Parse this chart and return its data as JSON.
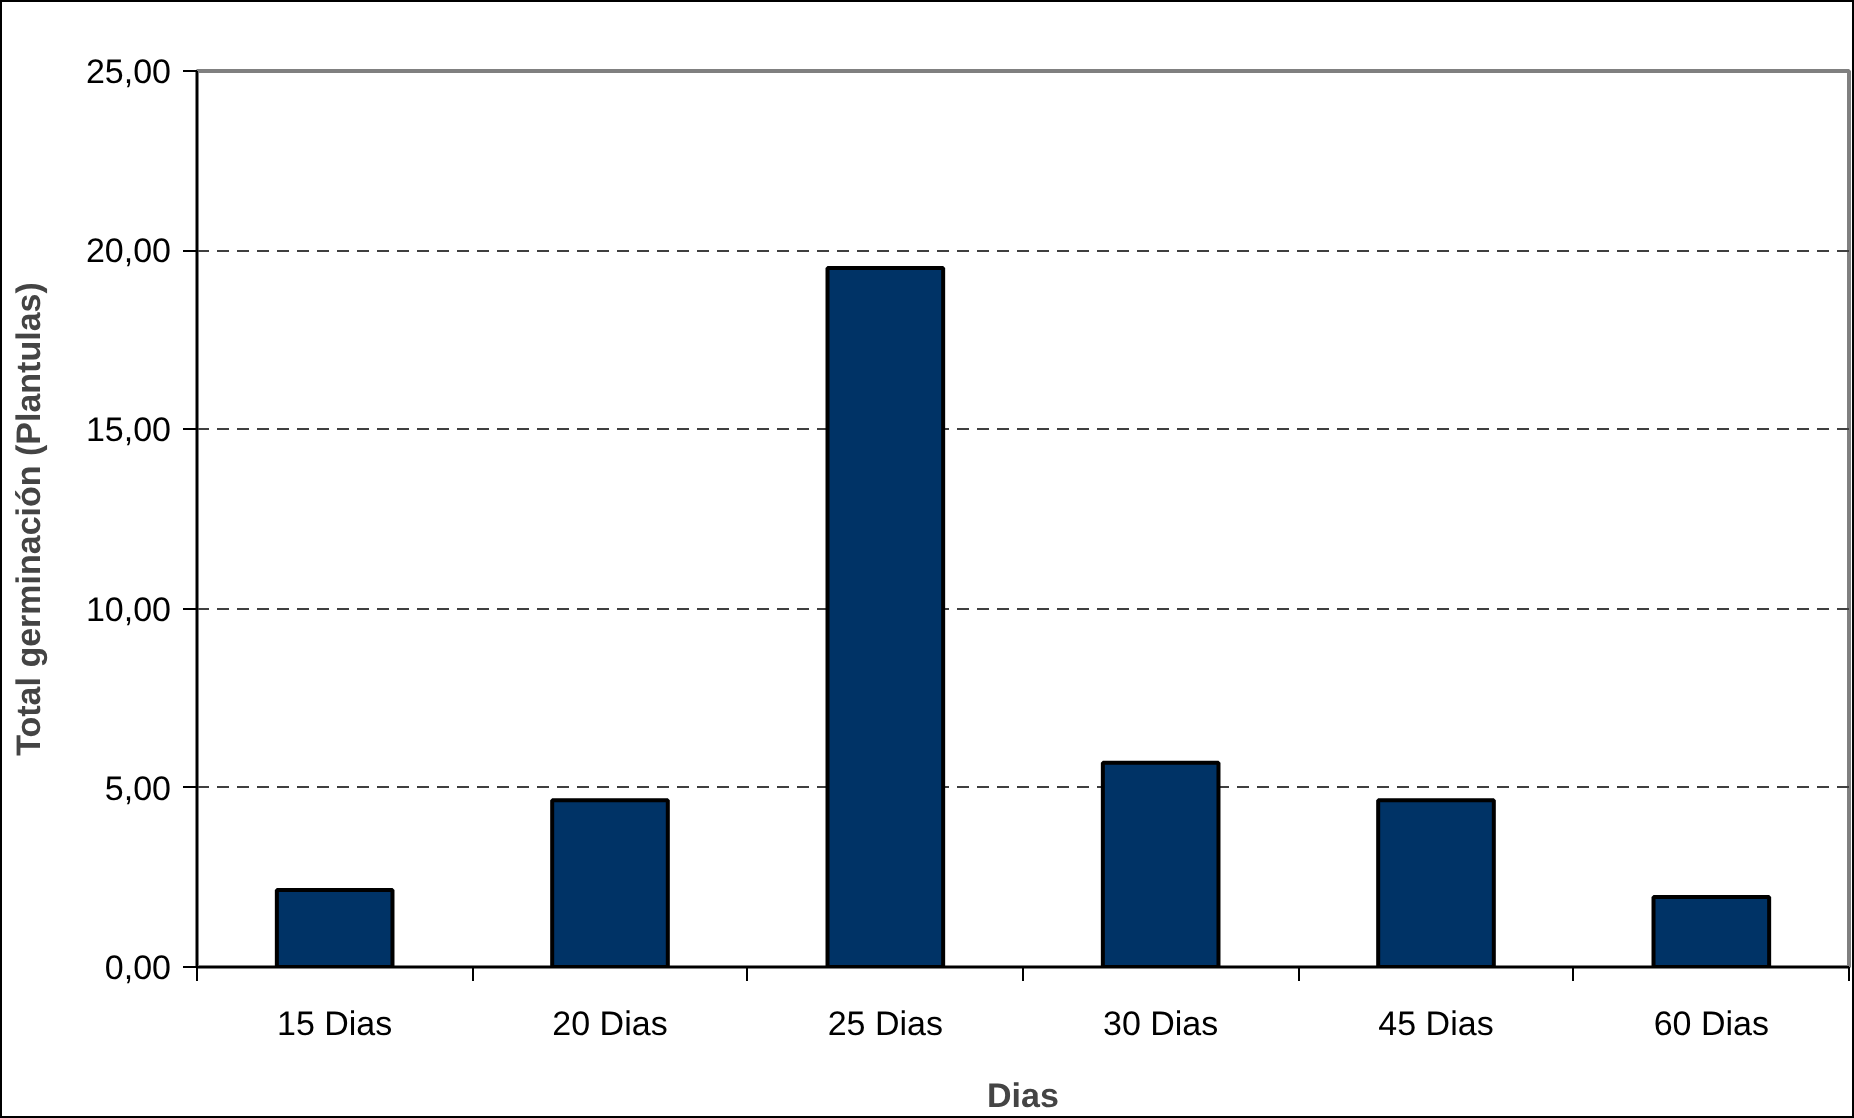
{
  "chart_data": {
    "type": "bar",
    "xlabel": "Dias",
    "ylabel": "Total germinación (Plantulas)",
    "categories": [
      "15 Dias",
      "20 Dias",
      "25 Dias",
      "30 Dias",
      "45 Dias",
      "60 Dias"
    ],
    "values": [
      2.15,
      4.65,
      19.5,
      5.7,
      4.65,
      1.95
    ],
    "color": "#003366",
    "ylim": [
      0,
      25
    ],
    "yticks": [
      {
        "value": 0,
        "label": "0,00"
      },
      {
        "value": 5,
        "label": "5,00"
      },
      {
        "value": 10,
        "label": "10,00"
      },
      {
        "value": 15,
        "label": "15,00"
      },
      {
        "value": 20,
        "label": "20,00"
      },
      {
        "value": 25,
        "label": "25,00"
      }
    ],
    "grid": "y"
  }
}
